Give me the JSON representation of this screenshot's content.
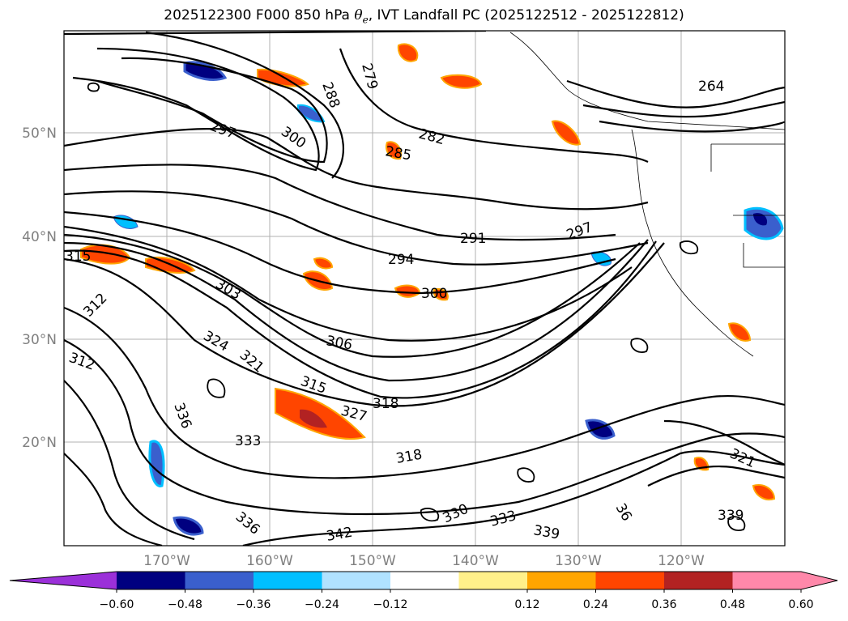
{
  "title": {
    "prefix": "2025122300 F000 850 hPa ",
    "theta": "θ",
    "theta_sub": "e",
    "suffix": ", IVT Landfall PC (2025122512 - 2025122812)"
  },
  "map": {
    "lat_labels": [
      "50°N",
      "40°N",
      "30°N",
      "20°N"
    ],
    "lon_labels": [
      "170°W",
      "160°W",
      "150°W",
      "140°W",
      "130°W",
      "120°W"
    ],
    "grid": true
  },
  "contours": {
    "labels": [
      "279",
      "288",
      "264",
      "297",
      "300",
      "282",
      "285",
      "291",
      "297",
      "294",
      "300",
      "315",
      "312",
      "303",
      "306",
      "324",
      "321",
      "318",
      "315",
      "327",
      "333",
      "318",
      "336",
      "312",
      "321",
      "339",
      "333",
      "339",
      "342",
      "336",
      "330",
      "36"
    ]
  },
  "colorbar": {
    "ticks": [
      "−0.60",
      "−0.48",
      "−0.36",
      "−0.24",
      "−0.12",
      "0.12",
      "0.24",
      "0.36",
      "0.48",
      "0.60"
    ],
    "colors": {
      "under": "#9b30d9",
      "bins": [
        "#000080",
        "#3a5fcd",
        "#00bfff",
        "#b0e2ff",
        "#ffffff",
        "#fff08a",
        "#ffa500",
        "#ff4500",
        "#b22222",
        "#ff88aa"
      ],
      "over": "#ff88aa"
    }
  }
}
